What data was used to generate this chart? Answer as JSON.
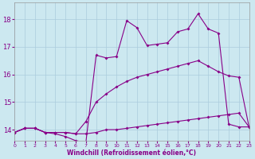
{
  "xlabel": "Windchill (Refroidissement éolien,°C)",
  "bg_color": "#cce8f0",
  "line_color": "#880088",
  "grid_color": "#aaccdd",
  "xlim": [
    0,
    23
  ],
  "ylim": [
    13.6,
    18.6
  ],
  "xticks": [
    0,
    1,
    2,
    3,
    4,
    5,
    6,
    7,
    8,
    9,
    10,
    11,
    12,
    13,
    14,
    15,
    16,
    17,
    18,
    19,
    20,
    21,
    22,
    23
  ],
  "yticks": [
    14,
    15,
    16,
    17,
    18
  ],
  "line1_x": [
    0,
    1,
    2,
    3,
    4,
    5,
    6,
    7,
    8,
    9,
    10,
    11,
    12,
    13,
    14,
    15,
    16,
    17,
    18,
    19,
    20,
    21,
    22,
    23
  ],
  "line1_y": [
    13.9,
    14.05,
    14.05,
    13.9,
    13.9,
    13.9,
    13.85,
    13.85,
    13.9,
    14.0,
    14.0,
    14.05,
    14.1,
    14.15,
    14.2,
    14.25,
    14.3,
    14.35,
    14.4,
    14.45,
    14.5,
    14.55,
    14.6,
    14.1
  ],
  "line2_x": [
    0,
    1,
    2,
    3,
    4,
    5,
    6,
    7,
    8,
    9,
    10,
    11,
    12,
    13,
    14,
    15,
    16,
    17,
    18,
    19,
    20,
    21,
    22,
    23
  ],
  "line2_y": [
    13.9,
    14.05,
    14.05,
    13.9,
    13.9,
    13.9,
    13.85,
    14.3,
    15.0,
    15.3,
    15.55,
    15.75,
    15.9,
    16.0,
    16.1,
    16.2,
    16.3,
    16.4,
    16.5,
    16.3,
    16.1,
    15.95,
    15.9,
    14.1
  ],
  "line3_x": [
    0,
    1,
    2,
    3,
    4,
    5,
    6,
    7,
    8,
    9,
    10,
    11,
    12,
    13,
    14,
    15,
    16,
    17,
    18,
    19,
    20,
    21,
    22,
    23
  ],
  "line3_y": [
    13.9,
    14.05,
    14.05,
    13.9,
    13.85,
    13.75,
    13.6,
    13.55,
    16.7,
    16.6,
    16.65,
    17.95,
    17.7,
    17.05,
    17.1,
    17.15,
    17.55,
    17.65,
    18.2,
    17.65,
    17.5,
    14.2,
    14.1,
    14.1
  ]
}
